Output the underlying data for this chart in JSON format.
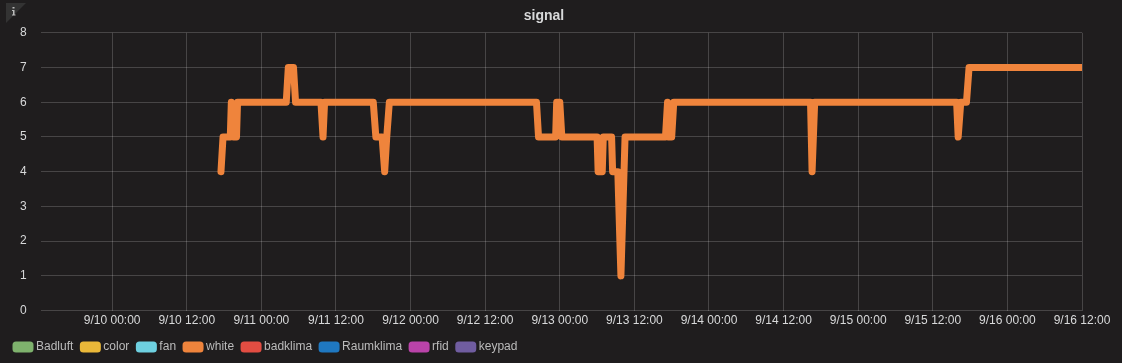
{
  "chart_data": {
    "type": "line",
    "title": "signal",
    "xlim": [
      "--09-09T12:30",
      "--09-16T12:00"
    ],
    "xticks": [
      {
        "value": "--09-10T00:00",
        "label": "9/10 00:00"
      },
      {
        "value": "--09-10T12:00",
        "label": "9/10 12:00"
      },
      {
        "value": "--09-11T00:00",
        "label": "9/11 00:00"
      },
      {
        "value": "--09-11T12:00",
        "label": "9/11 12:00"
      },
      {
        "value": "--09-12T00:00",
        "label": "9/12 00:00"
      },
      {
        "value": "--09-12T12:00",
        "label": "9/12 12:00"
      },
      {
        "value": "--09-13T00:00",
        "label": "9/13 00:00"
      },
      {
        "value": "--09-13T12:00",
        "label": "9/13 12:00"
      },
      {
        "value": "--09-14T00:00",
        "label": "9/14 00:00"
      },
      {
        "value": "--09-14T12:00",
        "label": "9/14 12:00"
      },
      {
        "value": "--09-15T00:00",
        "label": "9/15 00:00"
      },
      {
        "value": "--09-15T12:00",
        "label": "9/15 12:00"
      },
      {
        "value": "--09-16T00:00",
        "label": "9/16 00:00"
      },
      {
        "value": "--09-16T12:00",
        "label": "9/16 12:00"
      }
    ],
    "ylim": [
      0,
      8
    ],
    "yticks": [
      0,
      1,
      2,
      3,
      4,
      5,
      6,
      7,
      8
    ],
    "grid": true,
    "legend": "bottom",
    "marker": "none",
    "line_style": "solid",
    "series": [
      {
        "name": "Badluft",
        "color": "#7eb26d"
      },
      {
        "name": "color",
        "color": "#eab839"
      },
      {
        "name": "fan",
        "color": "#6ed0e0"
      },
      {
        "name": "white",
        "color": "#ef843c",
        "x": [
          "--09-10T17:30",
          "--09-10T17:50",
          "--09-10T19:00",
          "--09-10T19:10",
          "--09-10T19:30",
          "--09-10T20:00",
          "--09-10T20:10",
          "--09-11T04:00",
          "--09-11T04:20",
          "--09-11T05:10",
          "--09-11T05:30",
          "--09-11T09:35",
          "--09-11T09:55",
          "--09-11T10:10",
          "--09-11T18:00",
          "--09-11T18:25",
          "--09-11T19:25",
          "--09-11T19:50",
          "--09-11T20:10",
          "--09-11T20:35",
          "--09-12T20:15",
          "--09-12T20:35",
          "--09-12T23:20",
          "--09-12T23:30",
          "--09-13T00:00",
          "--09-13T00:20",
          "--09-13T06:00",
          "--09-13T06:10",
          "--09-13T06:50",
          "--09-13T07:00",
          "--09-13T08:20",
          "--09-13T08:30",
          "--09-13T09:20",
          "--09-13T09:50",
          "--09-13T10:10",
          "--09-13T10:30",
          "--09-13T17:00",
          "--09-13T17:20",
          "--09-13T17:35",
          "--09-13T18:00",
          "--09-13T18:20",
          "--09-14T16:20",
          "--09-14T16:35",
          "--09-14T17:00",
          "--09-15T15:50",
          "--09-15T16:05",
          "--09-15T16:30",
          "--09-15T17:25",
          "--09-15T17:50",
          "--09-16T12:00"
        ],
        "values": [
          4,
          5,
          5,
          6,
          5,
          5,
          6,
          6,
          7,
          7,
          6,
          6,
          5,
          6,
          6,
          5,
          5,
          4,
          5,
          6,
          6,
          5,
          5,
          6,
          6,
          5,
          5,
          4,
          4,
          5,
          5,
          4,
          4,
          1,
          3,
          5,
          5,
          6,
          5,
          5,
          6,
          6,
          4,
          6,
          6,
          5,
          6,
          6,
          7,
          7
        ]
      },
      {
        "name": "badklima",
        "color": "#e24d42"
      },
      {
        "name": "Raumklima",
        "color": "#1f78c1"
      },
      {
        "name": "rfid",
        "color": "#ba43a9"
      },
      {
        "name": "keypad",
        "color": "#705da0"
      }
    ]
  }
}
